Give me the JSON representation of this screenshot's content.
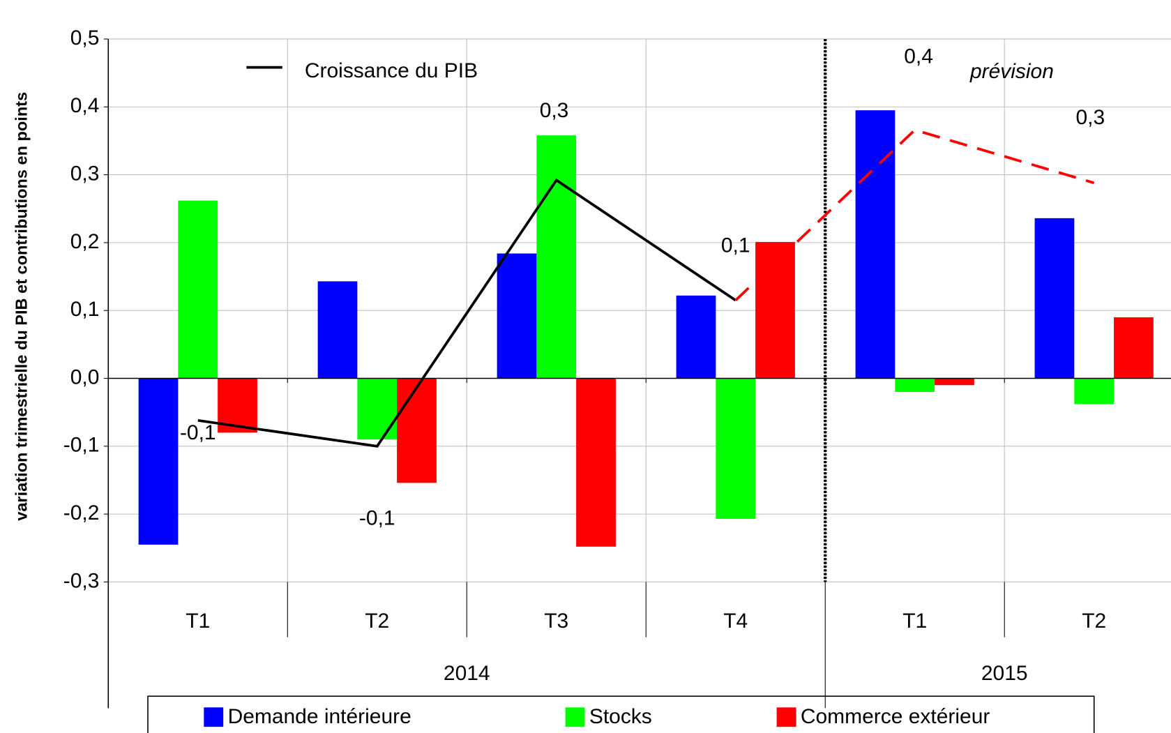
{
  "chart_data": {
    "type": "bar",
    "y_axis_label": "variation trimestrielle du PIB et contributions en points",
    "categories": [
      "T1",
      "T2",
      "T3",
      "T4",
      "T1",
      "T2"
    ],
    "years": [
      "2014",
      null,
      null,
      null,
      "2015",
      null
    ],
    "series": [
      {
        "name": "Demande intérieure",
        "color": "#0000ff",
        "values": [
          -0.245,
          0.143,
          0.184,
          0.122,
          0.395,
          0.236
        ]
      },
      {
        "name": "Stocks",
        "color": "#00ff00",
        "values": [
          0.262,
          -0.09,
          0.358,
          -0.207,
          -0.02,
          -0.038
        ]
      },
      {
        "name": "Commerce extérieur",
        "color": "#ff0000",
        "values": [
          -0.08,
          -0.154,
          -0.248,
          0.201,
          -0.01,
          0.09
        ]
      },
      {
        "name": "Croissance du PIB",
        "type": "line",
        "color": "#000000",
        "forecast_color": "#ff0000",
        "forecast_start": 3,
        "values": [
          -0.062,
          -0.1,
          0.292,
          0.115,
          0.366,
          0.288
        ],
        "value_labels": [
          "-0,1",
          "-0,1",
          "0,3",
          "0,1",
          "0,4",
          "0,3"
        ]
      }
    ],
    "annotation": "prévision",
    "ylim": [
      -0.3,
      0.5
    ],
    "yticks": [
      {
        "value": -0.3,
        "label": "-0,3"
      },
      {
        "value": -0.2,
        "label": "-0,2"
      },
      {
        "value": -0.1,
        "label": "-0,1"
      },
      {
        "value": 0,
        "label": "0,0"
      },
      {
        "value": 0.1,
        "label": "0,1"
      },
      {
        "value": 0.2,
        "label": "0,2"
      },
      {
        "value": 0.3,
        "label": "0,3"
      },
      {
        "value": 0.4,
        "label": "0,4"
      },
      {
        "value": 0.5,
        "label": "0,5"
      }
    ],
    "grid": true
  }
}
